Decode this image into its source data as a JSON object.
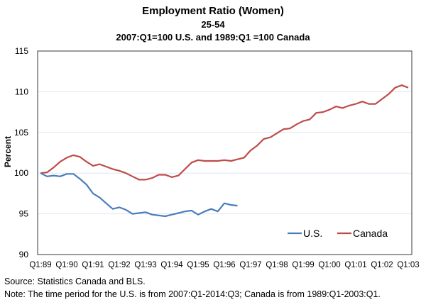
{
  "chart_data": {
    "type": "line",
    "title": "Employment Ratio (Women)",
    "subtitle_1": "25-54",
    "subtitle_2": "2007:Q1=100 U.S. and 1989:Q1 =100 Canada",
    "xlabel": "",
    "ylabel": "Percent",
    "ylim": [
      90,
      115
    ],
    "yticks": [
      90,
      95,
      100,
      105,
      110,
      115
    ],
    "x_tick_labels": [
      "Q1:89",
      "Q1:90",
      "Q1:91",
      "Q1:92",
      "Q1:93",
      "Q1:94",
      "Q1:95",
      "Q1:96",
      "Q1:97",
      "Q1:98",
      "Q1:99",
      "Q1:00",
      "Q1:01",
      "Q1:02",
      "Q1:03"
    ],
    "x_quarters": 57,
    "grid": "horizontal",
    "legend_position": "bottom-right",
    "series": [
      {
        "name": "U.S.",
        "color": "#4a7ebb",
        "values": [
          100.0,
          99.6,
          99.7,
          99.6,
          99.9,
          99.9,
          99.3,
          98.6,
          97.5,
          97.0,
          96.3,
          95.6,
          95.8,
          95.5,
          95.0,
          95.1,
          95.2,
          94.9,
          94.8,
          94.7,
          94.9,
          95.1,
          95.3,
          95.4,
          94.9,
          95.3,
          95.6,
          95.3,
          96.3,
          96.1,
          96.0
        ]
      },
      {
        "name": "Canada",
        "color": "#be4b48",
        "values": [
          100.0,
          100.1,
          100.7,
          101.4,
          101.9,
          102.2,
          102.0,
          101.4,
          100.9,
          101.1,
          100.8,
          100.5,
          100.3,
          100.0,
          99.6,
          99.2,
          99.2,
          99.4,
          99.8,
          99.8,
          99.5,
          99.7,
          100.5,
          101.3,
          101.6,
          101.5,
          101.5,
          101.5,
          101.6,
          101.5,
          101.7,
          101.9,
          102.8,
          103.4,
          104.2,
          104.4,
          104.9,
          105.4,
          105.5,
          106.0,
          106.4,
          106.6,
          107.4,
          107.5,
          107.8,
          108.2,
          108.0,
          108.3,
          108.5,
          108.8,
          108.5,
          108.5,
          109.1,
          109.7,
          110.5,
          110.8,
          110.5
        ]
      }
    ]
  },
  "footer": {
    "source": "Source: Statistics Canada and BLS.",
    "note": "Note: The time period for the U.S. is from 2007:Q1-2014:Q3; Canada is from 1989:Q1-2003:Q1."
  }
}
